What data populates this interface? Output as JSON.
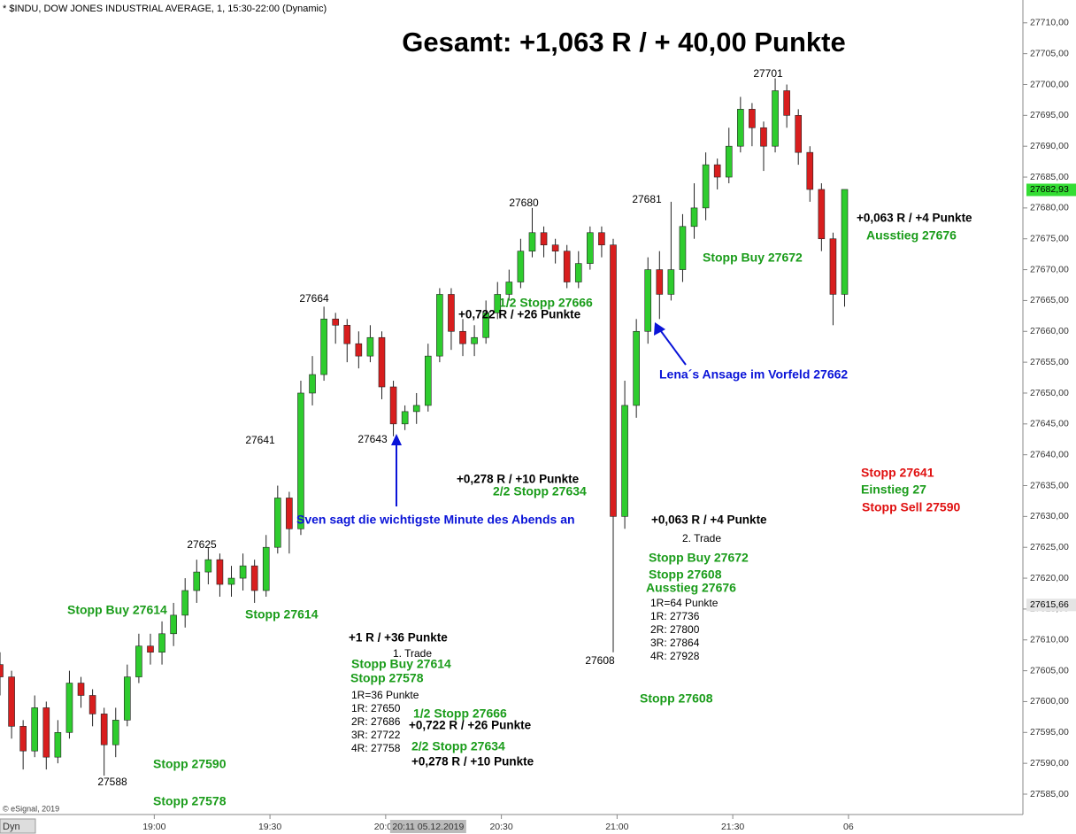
{
  "chart_data": {
    "type": "candlestick",
    "header": "* $INDU, DOW JONES INDUSTRIAL AVERAGE, 1, 15:30-22:00 (Dynamic)",
    "title": "Gesamt: +1,063 R / + 40,00 Punkte",
    "up_color": "#2ecc2e",
    "down_color": "#d81e1e",
    "outline_color": "#222222",
    "x": [
      1100,
      1103,
      1106,
      1109,
      1112,
      1115,
      1118,
      1121,
      1124,
      1127,
      1130,
      1133,
      1136,
      1139,
      1142,
      1145,
      1148,
      1151,
      1154,
      1157,
      1160,
      1163,
      1166,
      1169,
      1172,
      1175,
      1178,
      1181,
      1184,
      1187,
      1190,
      1193,
      1196,
      1199,
      1202,
      1205,
      1208,
      1211,
      1214,
      1217,
      1220,
      1223,
      1226,
      1229,
      1232,
      1235,
      1238,
      1241,
      1244,
      1247,
      1250,
      1253,
      1256,
      1259,
      1262,
      1265,
      1268,
      1271,
      1274,
      1277,
      1280,
      1283,
      1286,
      1289,
      1292,
      1295,
      1298,
      1301,
      1304,
      1307,
      1310,
      1313,
      1316,
      1319
    ],
    "open": [
      27606,
      27604,
      27596,
      27592,
      27599,
      27591,
      27595,
      27603,
      27601,
      27598,
      27593,
      27597,
      27604,
      27609,
      27608,
      27611,
      27614,
      27618,
      27621,
      27623,
      27619,
      27620,
      27622,
      27618,
      27625,
      27633,
      27628,
      27650,
      27653,
      27662,
      27661,
      27658,
      27656,
      27659,
      27651,
      27645,
      27647,
      27648,
      27656,
      27666,
      27660,
      27658,
      27659,
      27663,
      27666,
      27668,
      27673,
      27676,
      27674,
      27673,
      27668,
      27671,
      27676,
      27674,
      27630,
      27648,
      27660,
      27670,
      27666,
      27670,
      27677,
      27680,
      27687,
      27685,
      27690,
      27696,
      27693,
      27690,
      27699,
      27695,
      27689,
      27683,
      27675,
      27666
    ],
    "high": [
      27608,
      27605,
      27597,
      27601,
      27600,
      27597,
      27605,
      27604,
      27602,
      27599,
      27599,
      27606,
      27611,
      27611,
      27613,
      27616,
      27620,
      27623,
      27625,
      27624,
      27622,
      27624,
      27623,
      27627,
      27635,
      27634,
      27652,
      27656,
      27664,
      27663,
      27662,
      27660,
      27661,
      27660,
      27652,
      27648,
      27650,
      27658,
      27667,
      27667,
      27662,
      27661,
      27665,
      27668,
      27670,
      27675,
      27680,
      27677,
      27675,
      27674,
      27673,
      27677,
      27677,
      27675,
      27652,
      27662,
      27672,
      27673,
      27681,
      27679,
      27684,
      27689,
      27688,
      27693,
      27698,
      27697,
      27694,
      27701,
      27700,
      27696,
      27690,
      27684,
      27676,
      27683
    ],
    "low": [
      27601,
      27594,
      27589,
      27591,
      27589,
      27590,
      27594,
      27599,
      27596,
      27588,
      27591,
      27596,
      27603,
      27606,
      27606,
      27609,
      27612,
      27616,
      27619,
      27617,
      27617,
      27618,
      27616,
      27617,
      27624,
      27624,
      27627,
      27648,
      27652,
      27658,
      27655,
      27654,
      27655,
      27649,
      27643,
      27644,
      27645,
      27647,
      27655,
      27657,
      27656,
      27656,
      27658,
      27662,
      27665,
      27667,
      27672,
      27672,
      27671,
      27667,
      27667,
      27670,
      27672,
      27608,
      27628,
      27646,
      27658,
      27662,
      27665,
      27668,
      27675,
      27678,
      27683,
      27684,
      27689,
      27690,
      27686,
      27689,
      27693,
      27687,
      27681,
      27673,
      27661,
      27664
    ],
    "close": [
      27604,
      27596,
      27592,
      27599,
      27591,
      27595,
      27603,
      27601,
      27598,
      27593,
      27597,
      27604,
      27609,
      27608,
      27611,
      27614,
      27618,
      27621,
      27623,
      27619,
      27620,
      27622,
      27618,
      27625,
      27633,
      27628,
      27650,
      27653,
      27662,
      27661,
      27658,
      27656,
      27659,
      27651,
      27645,
      27647,
      27648,
      27656,
      27666,
      27660,
      27658,
      27659,
      27663,
      27666,
      27668,
      27673,
      27676,
      27674,
      27673,
      27668,
      27671,
      27676,
      27674,
      27630,
      27648,
      27660,
      27670,
      27666,
      27670,
      27677,
      27680,
      27687,
      27685,
      27690,
      27696,
      27693,
      27690,
      27699,
      27695,
      27689,
      27683,
      27675,
      27666,
      27683
    ],
    "xlim": [
      1100,
      1365
    ],
    "xticks": [
      {
        "value": 1140,
        "label": "19:00"
      },
      {
        "value": 1170,
        "label": "19:30"
      },
      {
        "value": 1200,
        "label": "20:00"
      },
      {
        "value": 1230,
        "label": "20:30"
      },
      {
        "value": 1260,
        "label": "21:00"
      },
      {
        "value": 1290,
        "label": "21:30"
      },
      {
        "value": 1320,
        "label": "06"
      }
    ],
    "ylim": [
      27581.7,
      27713.7
    ],
    "yticks": [
      {
        "value": 27585,
        "label": "27585,00"
      },
      {
        "value": 27590,
        "label": "27590,00"
      },
      {
        "value": 27595,
        "label": "27595,00"
      },
      {
        "value": 27600,
        "label": "27600,00"
      },
      {
        "value": 27605,
        "label": "27605,00"
      },
      {
        "value": 27610,
        "label": "27610,00"
      },
      {
        "value": 27615,
        "label": "27615,00"
      },
      {
        "value": 27620,
        "label": "27620,00"
      },
      {
        "value": 27625,
        "label": "27625,00"
      },
      {
        "value": 27630,
        "label": "27630,00"
      },
      {
        "value": 27635,
        "label": "27635,00"
      },
      {
        "value": 27640,
        "label": "27640,00"
      },
      {
        "value": 27645,
        "label": "27645,00"
      },
      {
        "value": 27650,
        "label": "27650,00"
      },
      {
        "value": 27655,
        "label": "27655,00"
      },
      {
        "value": 27660,
        "label": "27660,00"
      },
      {
        "value": 27665,
        "label": "27665,00"
      },
      {
        "value": 27670,
        "label": "27670,00"
      },
      {
        "value": 27675,
        "label": "27675,00"
      },
      {
        "value": 27680,
        "label": "27680,00"
      },
      {
        "value": 27685,
        "label": "27685,00"
      },
      {
        "value": 27690,
        "label": "27690,00"
      },
      {
        "value": 27695,
        "label": "27695,00"
      },
      {
        "value": 27700,
        "label": "27700,00"
      },
      {
        "value": 27705,
        "label": "27705,00"
      },
      {
        "value": 27710,
        "label": "27710,00"
      }
    ],
    "last_price": {
      "value": 27682.93,
      "label": "27682,93"
    },
    "marker_price": {
      "value": 27615.66,
      "label": "27615,66"
    },
    "cursor_label": "20:11 05.12.2019",
    "watermark": "© eSignal, 2019",
    "mode_label": "Dyn",
    "annotations": [
      "27701",
      "27680",
      "27681",
      "27664",
      "27641",
      "27643",
      "27625",
      "27608",
      "27588",
      "Stopp Buy 27614",
      "Stopp 27614",
      "Stopp 27590",
      "Stopp 27578",
      "Stopp Buy 27614",
      "Stopp 27578",
      "1/2 Stopp 27666",
      "2/2 Stopp 27634",
      "1/2 Stopp 27666",
      "2/2 Stopp 27634",
      "Stopp Buy 27672",
      "Stopp 27608",
      "Ausstieg 27676",
      "Stopp 27608",
      "Stopp Buy 27672",
      "Ausstieg 27676",
      "Einstieg 27",
      "Stopp 27641",
      "Stopp Sell 27590",
      "+1 R / +36 Punkte",
      "+0,722 R / +26 Punkte",
      "+0,278 R / +10 Punkte",
      "+0,722 R / +26 Punkte",
      "+0,278 R / +10 Punkte",
      "+0,063 R / +4 Punkte",
      "+0,063 R / +4 Punkte",
      "1. Trade",
      "1R=36 Punkte",
      "1R: 27650",
      "2R: 27686",
      "3R: 27722",
      "4R: 27758",
      "2. Trade",
      "1R=64 Punkte",
      "1R: 27736",
      "2R: 27800",
      "3R: 27864",
      "4R: 27928",
      "Sven sagt die wichtigste Minute des Abends an",
      "Lena´s Ansage im Vorfeld 27662"
    ]
  }
}
